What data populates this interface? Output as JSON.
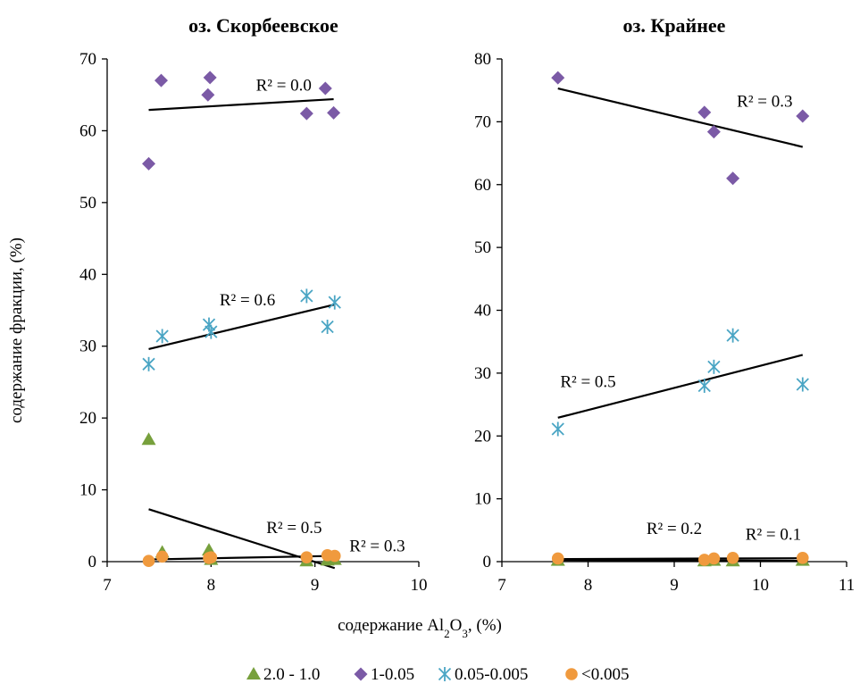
{
  "colors": {
    "green": "#77a03c",
    "purple": "#7b5aa6",
    "cyan": "#4aa5c4",
    "orange": "#f09a3e"
  },
  "xlabel": {
    "prefix": "содержание Al",
    "sub1": "2",
    "mid": "O",
    "sub2": "3",
    "suffix": ", (%)"
  },
  "ylabel": "содержание фракции, (%)",
  "legend": [
    {
      "name": "2.0 - 1.0",
      "marker": "triangle",
      "color_key": "green"
    },
    {
      "name": "1-0.05",
      "marker": "diamond",
      "color_key": "purple"
    },
    {
      "name": "0.05-0.005",
      "marker": "asterisk",
      "color_key": "cyan"
    },
    {
      "name": "<0.005",
      "marker": "circle",
      "color_key": "orange"
    }
  ],
  "chart_data": [
    {
      "type": "scatter",
      "title": "оз. Скорбеевское",
      "xlim": [
        7,
        10
      ],
      "ylim": [
        0,
        70
      ],
      "xticks": [
        7,
        8,
        9,
        10
      ],
      "yticks": [
        0,
        10,
        20,
        30,
        40,
        50,
        60,
        70
      ],
      "series": [
        {
          "name": "1-0.05",
          "marker": "diamond",
          "color_key": "purple",
          "points": [
            [
              7.4,
              55.4
            ],
            [
              7.52,
              67.0
            ],
            [
              7.97,
              65.0
            ],
            [
              7.99,
              67.4
            ],
            [
              8.92,
              62.4
            ],
            [
              9.1,
              65.9
            ],
            [
              9.18,
              62.5
            ]
          ],
          "trend": [
            [
              7.4,
              62.9
            ],
            [
              9.18,
              64.4
            ]
          ]
        },
        {
          "name": "0.05-0.005",
          "marker": "asterisk",
          "color_key": "cyan",
          "points": [
            [
              7.4,
              27.5
            ],
            [
              7.53,
              31.4
            ],
            [
              7.98,
              33.0
            ],
            [
              8.0,
              32.0
            ],
            [
              8.92,
              37.0
            ],
            [
              9.12,
              32.7
            ],
            [
              9.19,
              36.1
            ]
          ],
          "trend": [
            [
              7.4,
              29.6
            ],
            [
              9.19,
              35.8
            ]
          ]
        },
        {
          "name": "2.0 - 1.0",
          "marker": "triangle",
          "color_key": "green",
          "points": [
            [
              7.4,
              17.0
            ],
            [
              7.53,
              1.3
            ],
            [
              7.98,
              1.6
            ],
            [
              8.0,
              0.3
            ],
            [
              8.92,
              0.1
            ],
            [
              9.12,
              0.2
            ],
            [
              9.19,
              0.3
            ]
          ],
          "trend": [
            [
              7.4,
              7.3
            ],
            [
              9.19,
              -0.9
            ]
          ]
        },
        {
          "name": "<0.005",
          "marker": "circle",
          "color_key": "orange",
          "points": [
            [
              7.4,
              0.1
            ],
            [
              7.53,
              0.7
            ],
            [
              7.98,
              0.5
            ],
            [
              8.0,
              0.6
            ],
            [
              8.92,
              0.6
            ],
            [
              9.12,
              0.9
            ],
            [
              9.19,
              0.8
            ]
          ],
          "trend": [
            [
              7.4,
              0.3
            ],
            [
              9.19,
              0.8
            ]
          ]
        }
      ],
      "annotations": [
        {
          "text": "R² = 0.0",
          "x": 8.7,
          "y": 65.6
        },
        {
          "text": "R² = 0.6",
          "x": 8.35,
          "y": 35.7
        },
        {
          "text": "R² = 0.5",
          "x": 8.8,
          "y": 4.0
        },
        {
          "text": "R² = 0.3",
          "x": 9.6,
          "y": 1.4
        }
      ]
    },
    {
      "type": "scatter",
      "title": "оз. Крайнее",
      "xlim": [
        7,
        11
      ],
      "ylim": [
        0,
        80
      ],
      "xticks": [
        7,
        8,
        9,
        10,
        11
      ],
      "yticks": [
        0,
        10,
        20,
        30,
        40,
        50,
        60,
        70,
        80
      ],
      "series": [
        {
          "name": "1-0.05",
          "marker": "diamond",
          "color_key": "purple",
          "points": [
            [
              7.65,
              77.0
            ],
            [
              9.35,
              71.5
            ],
            [
              9.46,
              68.4
            ],
            [
              9.68,
              61.0
            ],
            [
              10.49,
              70.9
            ]
          ],
          "trend": [
            [
              7.65,
              75.3
            ],
            [
              10.49,
              66.0
            ]
          ]
        },
        {
          "name": "0.05-0.005",
          "marker": "asterisk",
          "color_key": "cyan",
          "points": [
            [
              7.65,
              21.1
            ],
            [
              9.35,
              28.0
            ],
            [
              9.46,
              31.0
            ],
            [
              9.68,
              36.0
            ],
            [
              10.49,
              28.2
            ]
          ],
          "trend": [
            [
              7.65,
              22.9
            ],
            [
              10.49,
              32.9
            ]
          ]
        },
        {
          "name": "2.0 - 1.0",
          "marker": "triangle",
          "color_key": "green",
          "points": [
            [
              7.65,
              0.2
            ],
            [
              9.35,
              0.1
            ],
            [
              9.46,
              0.2
            ],
            [
              9.68,
              0.1
            ],
            [
              10.49,
              0.2
            ]
          ],
          "trend": [
            [
              7.65,
              0.25
            ],
            [
              10.49,
              0.15
            ]
          ]
        },
        {
          "name": "<0.005",
          "marker": "circle",
          "color_key": "orange",
          "points": [
            [
              7.65,
              0.5
            ],
            [
              9.35,
              0.3
            ],
            [
              9.46,
              0.5
            ],
            [
              9.68,
              0.6
            ],
            [
              10.49,
              0.6
            ]
          ],
          "trend": [
            [
              7.65,
              0.4
            ],
            [
              10.49,
              0.55
            ]
          ]
        }
      ],
      "annotations": [
        {
          "text": "R² = 0.3",
          "x": 10.05,
          "y": 72.4
        },
        {
          "text": "R² = 0.5",
          "x": 8.0,
          "y": 27.8
        },
        {
          "text": "R² = 0.2",
          "x": 9.0,
          "y": 4.4
        },
        {
          "text": "R² = 0.1",
          "x": 10.15,
          "y": 3.5
        }
      ]
    }
  ]
}
